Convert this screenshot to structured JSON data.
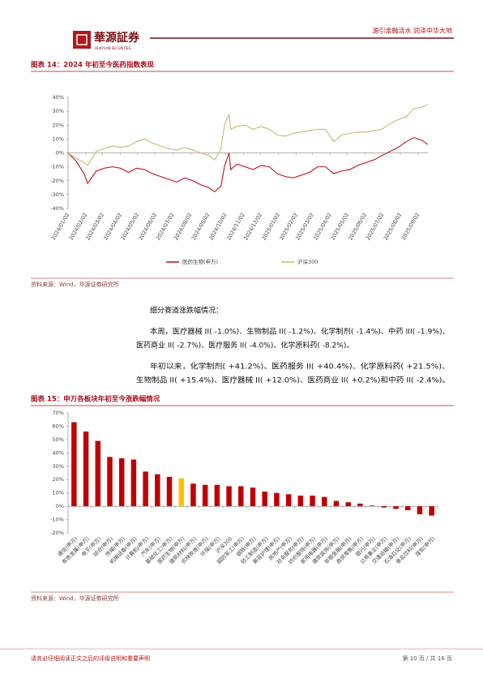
{
  "header": {
    "logo_text": "華源証券",
    "logo_subtext": "HUAYUAN SECURITIES",
    "slogan": "源引金融活水 润泽中华大地"
  },
  "figure14": {
    "title": "图表 14：2024 年初至今医药指数表现",
    "source": "资料来源：Wind，华源证券研究所"
  },
  "body": {
    "heading": "细分赛道涨跌幅情况：",
    "paragraphs": [
      [
        "本周，医疗器械 II( -1.0%)、生物制品 II( -1.2%)、化学制剂( -1.4%)、中药 III( -1.9%)、",
        "医药商业 II( -2.7%)、医疗服务 II( -4.0%)、化学原料药( -8.2%)。"
      ],
      [
        "年初以来，化学制剂( +41.2%)、医药服务 II( +40.4%)、化学原料药( +21.5%)、",
        "生物制品 II( +15.4%)、医疗器械 II( +12.0%)、医药商业 II( +0.2%)和中药 II( -2.4%)。"
      ]
    ]
  },
  "figure15": {
    "title": "图表 15：申万各板块年初至今涨跌幅情况",
    "source": "资料来源：Wind，华源证券研究所"
  },
  "footer": {
    "disclaimer": "请务必仔细阅读正文之后的评级说明和重要声明",
    "page": "第 10 页 / 共 16 页"
  },
  "chart_data": [
    {
      "type": "line",
      "x": [
        "2024/01/02",
        "2024/01/16",
        "2024/01/30",
        "2024/02/05",
        "2024/02/20",
        "2024/03/05",
        "2024/03/19",
        "2024/04/02",
        "2024/04/16",
        "2024/04/30",
        "2024/05/14",
        "2024/05/28",
        "2024/06/11",
        "2024/06/25",
        "2024/07/09",
        "2024/07/23",
        "2024/08/06",
        "2024/08/20",
        "2024/09/03",
        "2024/09/13",
        "2024/09/24",
        "2024/09/30",
        "2024/10/08",
        "2024/10/11",
        "2024/10/22",
        "2024/11/05",
        "2024/11/19",
        "2024/12/03",
        "2024/12/17",
        "2024/12/31",
        "2025/01/14",
        "2025/01/28",
        "2025/02/11",
        "2025/02/25",
        "2025/03/11",
        "2025/03/25",
        "2025/04/08",
        "2025/04/22",
        "2025/05/06",
        "2025/05/20",
        "2025/06/03",
        "2025/06/17",
        "2025/07/01",
        "2025/07/15",
        "2025/07/29",
        "2025/08/12",
        "2025/08/26",
        "2025/09/09",
        "2025/09/19"
      ],
      "series": [
        {
          "name": "医药生物(申万)",
          "color": "#c0111f",
          "values": [
            0,
            -6,
            -15,
            -22,
            -13,
            -11,
            -10,
            -11,
            -14,
            -11,
            -12,
            -15,
            -17,
            -19,
            -21,
            -18,
            -20,
            -23,
            -25,
            -28,
            -24,
            -10,
            0,
            -12,
            -8,
            -10,
            -12,
            -9,
            -10,
            -15,
            -17,
            -18,
            -16,
            -14,
            -10,
            -10,
            -15,
            -13,
            -12,
            -9,
            -7,
            -5,
            -2,
            1,
            4,
            8,
            11,
            9,
            6
          ]
        },
        {
          "name": "沪深300",
          "color": "#c9b577",
          "values": [
            0,
            -4,
            -7,
            -9,
            1,
            3,
            5,
            4,
            5,
            8,
            10,
            7,
            5,
            3,
            2,
            4,
            2,
            0,
            -2,
            -5,
            3,
            20,
            28,
            17,
            19,
            20,
            17,
            19,
            17,
            13,
            12,
            14,
            15,
            16,
            17,
            17,
            8,
            13,
            14,
            15,
            15,
            16,
            17,
            21,
            24,
            26,
            32,
            33,
            35
          ]
        }
      ],
      "xlim": [
        "2024/01/02",
        "2025/09/19"
      ],
      "xticks": [
        "2024/01/02",
        "2024/02/02",
        "2024/03/02",
        "2024/04/02",
        "2024/05/02",
        "2024/06/02",
        "2024/07/02",
        "2024/08/02",
        "2024/09/02",
        "2024/10/02",
        "2024/11/02",
        "2024/12/02",
        "2025/01/02",
        "2025/02/02",
        "2025/03/02",
        "2025/04/02",
        "2025/05/02",
        "2025/06/02",
        "2025/07/02",
        "2025/08/02",
        "2025/09/02"
      ],
      "ylim": [
        -40,
        40
      ],
      "yticks": [
        {
          "value": -40,
          "label": "-40%"
        },
        {
          "value": -30,
          "label": "-30%"
        },
        {
          "value": -20,
          "label": "-20%"
        },
        {
          "value": -10,
          "label": "-10%"
        },
        {
          "value": 0,
          "label": "0%"
        },
        {
          "value": 10,
          "label": "10%"
        },
        {
          "value": 20,
          "label": "20%"
        },
        {
          "value": 30,
          "label": "30%"
        },
        {
          "value": 40,
          "label": "40%"
        }
      ],
      "legend": "bottom"
    },
    {
      "type": "bar",
      "categories": [
        "通信(申万)",
        "有色金属(申万)",
        "电子(申万)",
        "综合(申万)",
        "传媒(申万)",
        "机械设备(申万)",
        "计算机(申万)",
        "汽车(申万)",
        "基础化工(申万)",
        "医药生物(申万)",
        "建筑材料(申万)",
        "农林牧渔(申万)",
        "环保(申万)",
        "沪深300",
        "国防军工(申万)",
        "钢铁(申万)",
        "轻工制造(申万)",
        "美容护理(申万)",
        "房地产(申万)",
        "社会服务(申万)",
        "纺织服饰(申万)",
        "家用电器(申万)",
        "建筑装饰(申万)",
        "非银金融(申万)",
        "商贸零售(申万)",
        "银行(申万)",
        "公用事业(申万)",
        "交通运输(申万)",
        "石油石化(申万)",
        "食品饮料(申万)",
        "煤炭(申万)"
      ],
      "values": [
        63,
        56,
        49,
        37,
        36,
        35,
        26,
        24,
        22,
        21,
        17,
        16,
        16,
        15,
        15,
        14,
        11,
        10,
        9,
        8,
        8,
        7,
        4,
        3,
        2,
        0.5,
        -1,
        -2,
        -3,
        -6,
        -7
      ],
      "color": "#c00000",
      "highlight_category": "医药生物(申万)",
      "highlight_color": "#ffc000",
      "ylim": [
        -20,
        70
      ],
      "yticks": [
        {
          "value": -20,
          "label": "-20%"
        },
        {
          "value": -10,
          "label": "-10%"
        },
        {
          "value": 0,
          "label": "0%"
        },
        {
          "value": 10,
          "label": "10%"
        },
        {
          "value": 20,
          "label": "20%"
        },
        {
          "value": 30,
          "label": "30%"
        },
        {
          "value": 40,
          "label": "40%"
        },
        {
          "value": 50,
          "label": "50%"
        },
        {
          "value": 60,
          "label": "60%"
        },
        {
          "value": 70,
          "label": "70%"
        }
      ]
    }
  ]
}
